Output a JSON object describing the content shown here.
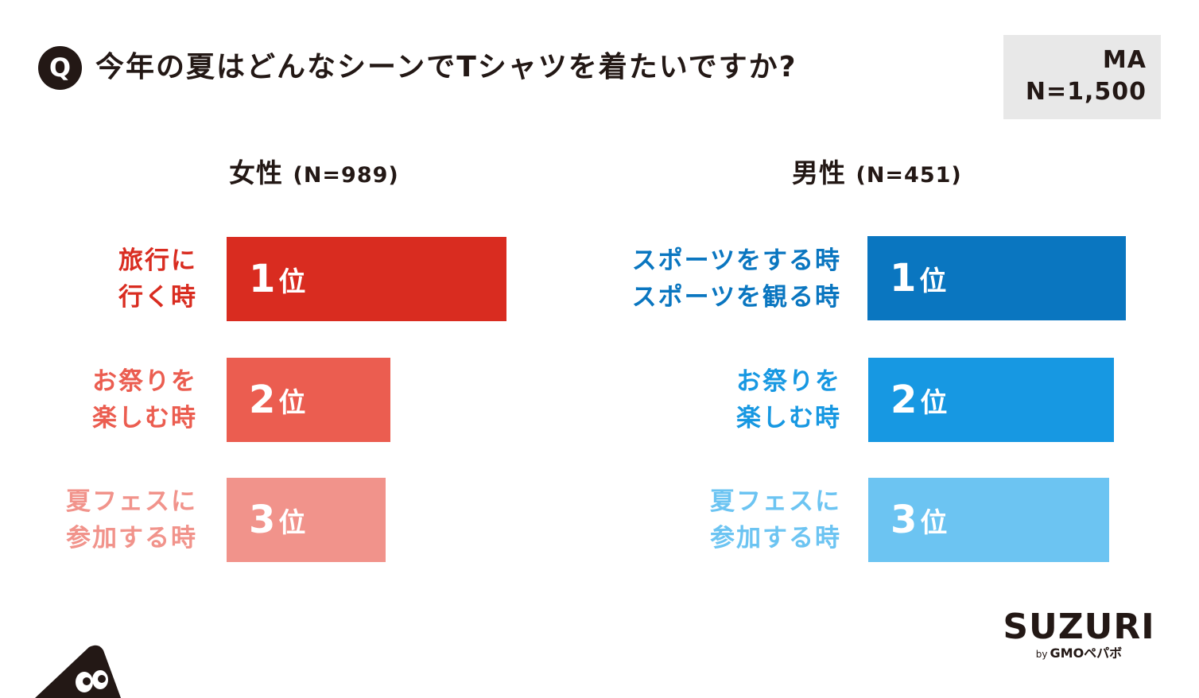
{
  "header": {
    "badge": "Q",
    "question": "今年の夏はどんなシーンでTシャツを着たいですか?",
    "ma_label": "MA",
    "n_total": "N=1,500"
  },
  "colors": {
    "text": "#231815",
    "female": [
      "#d92c20",
      "#eb5d50",
      "#f1938b"
    ],
    "male": [
      "#0a76c0",
      "#1798e2",
      "#6cc4f2"
    ],
    "ma_bg": "#e8e8e8"
  },
  "chart_data": [
    {
      "type": "bar",
      "orientation": "horizontal",
      "title": "女性",
      "n": "(N=989)",
      "categories": [
        "旅行に\n行く時",
        "お祭りを\n楽しむ時",
        "夏フェスに\n参加する時"
      ],
      "ranks": [
        "1",
        "2",
        "3"
      ],
      "rank_suffix": "位",
      "values": [
        100,
        58.6,
        56.9
      ],
      "value_unit": "relative bar length (% of rank 1)"
    },
    {
      "type": "bar",
      "orientation": "horizontal",
      "title": "男性",
      "n": "(N=451)",
      "categories": [
        "スポーツをする時\nスポーツを観る時",
        "お祭りを\n楽しむ時",
        "夏フェスに\n参加する時"
      ],
      "ranks": [
        "1",
        "2",
        "3"
      ],
      "rank_suffix": "位",
      "values": [
        100,
        95.1,
        93.3
      ],
      "value_unit": "relative bar length (% of rank 1)"
    }
  ],
  "logo": {
    "name": "SUZURI",
    "by": "by",
    "company": "GMOペパボ"
  }
}
